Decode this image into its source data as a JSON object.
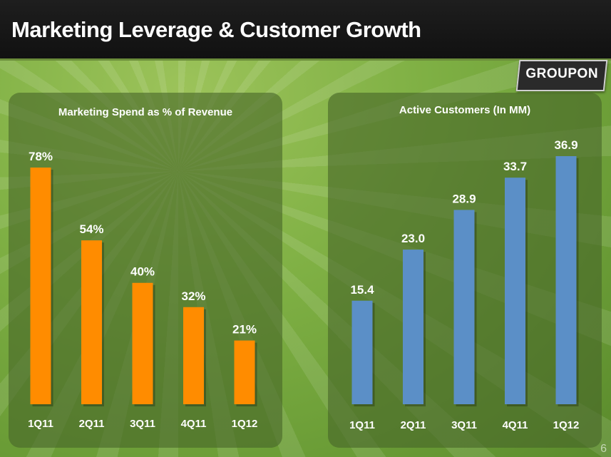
{
  "page": {
    "title": "Marketing Leverage & Customer Growth",
    "logo": "GROUPON",
    "page_number": "6"
  },
  "chart_data": [
    {
      "type": "bar",
      "title": "Marketing Spend as % of Revenue",
      "categories": [
        "1Q11",
        "2Q11",
        "3Q11",
        "4Q11",
        "1Q12"
      ],
      "values": [
        78,
        54,
        40,
        32,
        21
      ],
      "value_labels": [
        "78%",
        "54%",
        "40%",
        "32%",
        "21%"
      ],
      "ylim": [
        0,
        78
      ],
      "bar_color": "#ff8c00",
      "grid": false
    },
    {
      "type": "bar",
      "title": "Active Customers (In MM)",
      "categories": [
        "1Q11",
        "2Q11",
        "3Q11",
        "4Q11",
        "1Q12"
      ],
      "values": [
        15.4,
        23.0,
        28.9,
        33.7,
        36.9
      ],
      "value_labels": [
        "15.4",
        "23.0",
        "28.9",
        "33.7",
        "36.9"
      ],
      "ylim": [
        0,
        36.9
      ],
      "bar_color": "#5b8fc7",
      "grid": false
    }
  ]
}
